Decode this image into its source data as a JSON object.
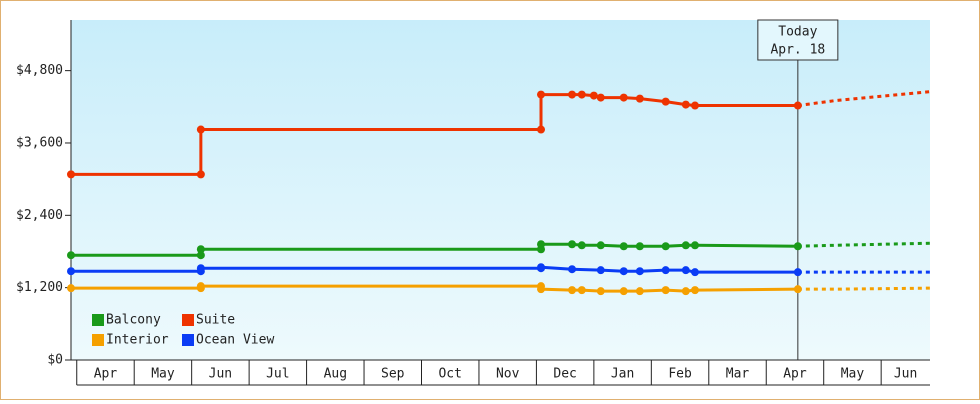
{
  "chart_data": {
    "type": "line",
    "categories": [
      "Apr",
      "May",
      "Jun",
      "Jul",
      "Aug",
      "Sep",
      "Oct",
      "Nov",
      "Dec",
      "Jan",
      "Feb",
      "Mar",
      "Apr",
      "May",
      "Jun"
    ],
    "xlim": [
      -0.1,
      14.85
    ],
    "ylim": [
      0,
      5640
    ],
    "yticks": [
      {
        "value": 0,
        "label": "$0"
      },
      {
        "value": 1200,
        "label": "$1,200"
      },
      {
        "value": 2400,
        "label": "$2,400"
      },
      {
        "value": 3600,
        "label": "$3,600"
      },
      {
        "value": 4800,
        "label": "$4,800"
      }
    ],
    "legend": "lower left",
    "annotation": {
      "lines": [
        "Today",
        "Apr. 18"
      ],
      "x": 12.55
    },
    "series": [
      {
        "name": "Balcony",
        "color": "#1a9a1a",
        "x": [
          -0.1,
          2.16,
          2.16,
          8.08,
          8.08,
          8.62,
          8.79,
          9.12,
          9.52,
          9.8,
          10.25,
          10.6,
          10.76,
          12.55
        ],
        "values": [
          1738,
          1738,
          1837,
          1837,
          1920,
          1920,
          1903,
          1903,
          1887,
          1887,
          1887,
          1903,
          1903,
          1887
        ],
        "projection": {
          "x": [
            12.55,
            13.2,
            14.85
          ],
          "values": [
            1887,
            1903,
            1937
          ]
        }
      },
      {
        "name": "Suite",
        "color": "#ee3300",
        "x": [
          -0.1,
          2.16,
          2.16,
          8.08,
          8.08,
          8.62,
          8.79,
          9.0,
          9.12,
          9.52,
          9.8,
          10.25,
          10.6,
          10.76,
          12.55
        ],
        "values": [
          3079,
          3079,
          3823,
          3823,
          4403,
          4403,
          4403,
          4386,
          4353,
          4353,
          4336,
          4286,
          4237,
          4221,
          4221
        ],
        "projection": {
          "x": [
            12.55,
            13.2,
            14.85
          ],
          "values": [
            4221,
            4303,
            4452
          ]
        }
      },
      {
        "name": "Interior",
        "color": "#f5a000",
        "x": [
          -0.1,
          2.16,
          2.16,
          8.08,
          8.08,
          8.62,
          8.79,
          9.12,
          9.52,
          9.8,
          10.25,
          10.6,
          10.76,
          12.55
        ],
        "values": [
          1192,
          1192,
          1225,
          1225,
          1175,
          1159,
          1159,
          1142,
          1142,
          1142,
          1159,
          1142,
          1159,
          1175
        ],
        "projection": {
          "x": [
            12.55,
            13.2,
            14.85
          ],
          "values": [
            1175,
            1175,
            1192
          ]
        }
      },
      {
        "name": "Ocean View",
        "color": "#0a3cf5",
        "x": [
          -0.1,
          2.16,
          2.16,
          8.08,
          8.08,
          8.62,
          9.12,
          9.52,
          9.8,
          10.25,
          10.6,
          10.76,
          12.55
        ],
        "values": [
          1473,
          1473,
          1523,
          1523,
          1539,
          1506,
          1490,
          1473,
          1473,
          1490,
          1490,
          1457,
          1457
        ],
        "projection": {
          "x": [
            12.55,
            13.2,
            14.85
          ],
          "values": [
            1457,
            1457,
            1457
          ]
        }
      }
    ]
  }
}
